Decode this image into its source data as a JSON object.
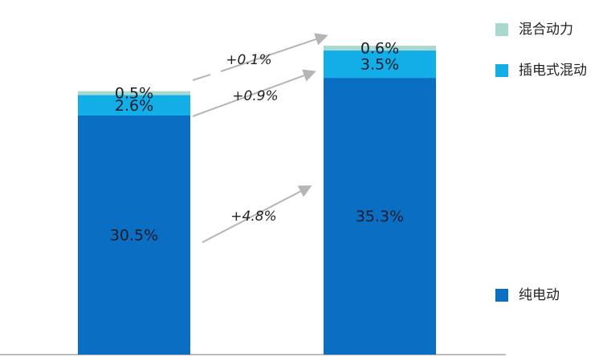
{
  "chart_data": {
    "type": "stacked-bar",
    "categories": [
      null,
      null
    ],
    "series": [
      {
        "name": "纯电动",
        "color": "#0a6fc2",
        "values": [
          30.5,
          35.3
        ],
        "value_labels": [
          "30.5%",
          "35.3%"
        ]
      },
      {
        "name": "插电式混动",
        "color": "#12aee8",
        "values": [
          2.6,
          3.5
        ],
        "value_labels": [
          "2.6%",
          "3.5%"
        ]
      },
      {
        "name": "混合动力",
        "color": "#a9d9cc",
        "values": [
          0.5,
          0.6
        ],
        "value_labels": [
          "0.5%",
          "0.6%"
        ]
      }
    ],
    "annotations": [
      "+0.1%",
      "+0.9%",
      "+4.8%"
    ]
  }
}
